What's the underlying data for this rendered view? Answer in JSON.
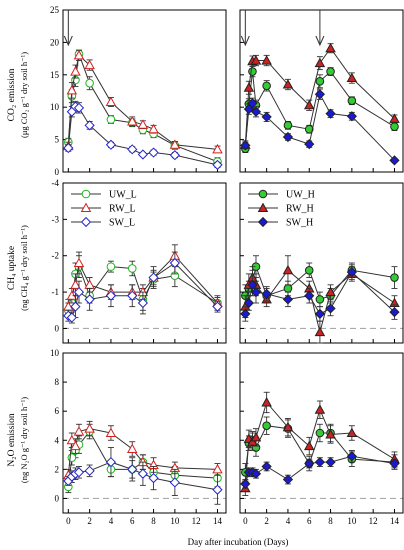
{
  "figure": {
    "xlabel": "Day after incubation (Days)",
    "x_ticks": [
      0,
      2,
      4,
      6,
      8,
      10,
      12,
      14
    ],
    "xlim": [
      -0.5,
      14.8
    ]
  },
  "rows": [
    {
      "ylabel_line1": "CO₂ emission",
      "ylabel_line2": "(μg CO₂ g⁻¹ dry soil h⁻¹)",
      "ylim": [
        0,
        25
      ],
      "y_ticks": [
        0,
        5,
        10,
        15,
        20,
        25
      ],
      "y_tick_labels": [
        "0",
        "5",
        "10",
        "15",
        "20",
        "25"
      ],
      "inverted": false,
      "dashed_zero": false
    },
    {
      "ylabel_line1": "CH₄ uptake",
      "ylabel_line2": "(ng CH₄ g⁻¹ dry soil h⁻¹)",
      "ylim": [
        0.4,
        -4
      ],
      "y_ticks": [
        0,
        -1,
        -2,
        -3,
        -4
      ],
      "y_tick_labels": [
        "0",
        "-1",
        "-2",
        "-3",
        "-4"
      ],
      "inverted": true,
      "dashed_zero": true
    },
    {
      "ylabel_line1": "N₂O emission",
      "ylabel_line2": "(ng N₂O g⁻¹ dry soil h⁻¹)",
      "ylim": [
        -1,
        10
      ],
      "y_ticks": [
        0,
        2,
        4,
        6,
        8,
        10
      ],
      "y_tick_labels": [
        "0",
        "2",
        "4",
        "6",
        "8",
        "10"
      ],
      "inverted": false,
      "dashed_zero": true
    }
  ],
  "legend_left": [
    "UW_L",
    "RW_L",
    "SW_L"
  ],
  "legend_right": [
    "UW_H",
    "RW_H",
    "SW_H"
  ],
  "colors": {
    "UW": "#1fb51f",
    "RW": "#d42020",
    "SW": "#2525c8",
    "open_face": "#ffffff",
    "uw_filled_face": "#33cc33",
    "rw_filled_face": "#cc2222",
    "sw_filled_face": "#1a1ad6",
    "line": "#333333",
    "zero_line": "#aaaaaa"
  },
  "chart_data": [
    {
      "panel": "CO2_L",
      "type": "line",
      "arrows_at_x": [
        0
      ],
      "x": [
        0,
        0.33,
        0.67,
        1,
        2,
        4,
        6,
        7,
        8,
        10,
        14
      ],
      "series": [
        {
          "name": "UW_L",
          "values": [
            4.6,
            11.7,
            14.2,
            18.2,
            13.7,
            8.1,
            7.6,
            6.5,
            5.9,
            4.1,
            1.6
          ],
          "errors": [
            0.6,
            1.0,
            1.0,
            0.6,
            1.0,
            0.6,
            0.6,
            0.6,
            0.6,
            0.6,
            0.6
          ]
        },
        {
          "name": "RW_L",
          "values": [
            4.0,
            12.6,
            15.5,
            18.0,
            16.5,
            10.8,
            7.8,
            7.3,
            6.6,
            4.2,
            3.5
          ],
          "errors": [
            0.6,
            1.2,
            1.0,
            0.8,
            0.8,
            0.7,
            0.7,
            0.6,
            0.6,
            0.5,
            0.5
          ]
        },
        {
          "name": "SW_L",
          "values": [
            3.7,
            9.3,
            10.1,
            9.9,
            7.2,
            4.2,
            3.5,
            2.7,
            3.0,
            2.6,
            1.1
          ],
          "errors": [
            0.5,
            0.8,
            0.8,
            0.8,
            0.6,
            0.4,
            0.4,
            0.3,
            0.4,
            0.4,
            0.4
          ]
        }
      ]
    },
    {
      "panel": "CO2_H",
      "type": "line",
      "arrows_at_x": [
        0,
        7
      ],
      "x": [
        0,
        0.33,
        0.67,
        1,
        2,
        4,
        6,
        7,
        8,
        10,
        14
      ],
      "series": [
        {
          "name": "UW_H",
          "values": [
            3.6,
            10.5,
            15.5,
            10.3,
            13.3,
            7.2,
            6.6,
            14.0,
            15.5,
            11.0,
            7.0
          ],
          "errors": [
            0.6,
            0.8,
            0.8,
            0.8,
            0.8,
            0.6,
            0.6,
            1.0,
            0.6,
            0.6,
            0.6
          ]
        },
        {
          "name": "RW_H",
          "values": [
            4.2,
            13.0,
            17.1,
            17.2,
            17.2,
            13.5,
            10.3,
            16.8,
            19.1,
            14.5,
            8.2
          ],
          "errors": [
            0.6,
            1.0,
            0.8,
            0.8,
            0.8,
            0.8,
            0.8,
            1.0,
            0.7,
            0.8,
            0.6
          ]
        },
        {
          "name": "SW_H",
          "values": [
            4.1,
            9.7,
            10.6,
            9.3,
            8.5,
            5.4,
            4.3,
            12.0,
            9.0,
            8.6,
            1.8
          ],
          "errors": [
            0.5,
            0.8,
            0.8,
            0.8,
            0.7,
            0.5,
            0.5,
            0.8,
            0.6,
            0.6,
            0.3
          ]
        }
      ]
    },
    {
      "panel": "CH4_L",
      "type": "line",
      "x": [
        0,
        0.33,
        0.67,
        1,
        2,
        4,
        6,
        7,
        8,
        10,
        14
      ],
      "series": [
        {
          "name": "UW_L",
          "values": [
            -0.5,
            -0.7,
            -1.5,
            -1.7,
            -0.9,
            -1.7,
            -1.65,
            -0.8,
            -1.35,
            -1.45,
            -0.7
          ],
          "errors": [
            0.2,
            0.2,
            0.3,
            0.3,
            0.2,
            0.15,
            0.2,
            0.3,
            0.2,
            0.3,
            0.15
          ]
        },
        {
          "name": "RW_L",
          "values": [
            -0.6,
            -0.9,
            -1.2,
            -1.8,
            -1.2,
            -1.0,
            -1.0,
            -1.0,
            -1.4,
            -2.0,
            -0.7
          ],
          "errors": [
            0.2,
            0.2,
            0.3,
            0.3,
            0.2,
            0.2,
            0.2,
            0.2,
            0.2,
            0.3,
            0.2
          ]
        },
        {
          "name": "SW_L",
          "values": [
            -0.35,
            -0.3,
            -0.6,
            -1.0,
            -0.8,
            -0.9,
            -0.9,
            -0.7,
            -1.4,
            -1.8,
            -0.6
          ],
          "errors": [
            0.15,
            0.15,
            0.3,
            0.3,
            0.3,
            0.3,
            0.3,
            0.3,
            0.3,
            0.3,
            0.15
          ]
        }
      ]
    },
    {
      "panel": "CH4_H",
      "type": "line",
      "x": [
        0,
        0.33,
        0.67,
        1,
        2,
        4,
        6,
        7,
        8,
        10,
        14
      ],
      "series": [
        {
          "name": "UW_H",
          "values": [
            -0.9,
            -1.1,
            -1.3,
            -1.7,
            -0.9,
            -1.1,
            -1.6,
            -0.8,
            -0.9,
            -1.6,
            -1.4
          ],
          "errors": [
            0.3,
            0.2,
            0.3,
            0.3,
            0.2,
            0.2,
            0.2,
            0.2,
            0.2,
            0.2,
            0.3
          ]
        },
        {
          "name": "RW_H",
          "values": [
            -0.6,
            -1.2,
            -1.4,
            -1.2,
            -0.8,
            -1.6,
            -1.1,
            0.1,
            -1.0,
            -1.5,
            -0.7
          ],
          "errors": [
            0.3,
            0.3,
            0.3,
            0.3,
            0.2,
            0.4,
            0.2,
            0.3,
            0.2,
            0.2,
            0.2
          ]
        },
        {
          "name": "SW_H",
          "values": [
            -0.4,
            -0.7,
            -1.2,
            -1.0,
            -0.95,
            -0.8,
            -0.9,
            -0.4,
            -0.55,
            -1.55,
            -0.45
          ],
          "errors": [
            0.2,
            0.2,
            0.3,
            0.3,
            0.2,
            0.2,
            0.2,
            0.2,
            0.2,
            0.2,
            0.2
          ]
        }
      ]
    },
    {
      "panel": "N2O_L",
      "type": "line",
      "x": [
        0,
        0.33,
        0.67,
        1,
        2,
        4,
        6,
        7,
        8,
        10,
        14
      ],
      "series": [
        {
          "name": "UW_L",
          "values": [
            0.8,
            2.8,
            3.3,
            3.7,
            4.6,
            2.0,
            2.0,
            2.5,
            1.8,
            1.6,
            1.4
          ],
          "errors": [
            0.4,
            0.5,
            0.5,
            0.6,
            0.5,
            0.5,
            0.6,
            0.5,
            0.5,
            0.6,
            0.6
          ]
        },
        {
          "name": "RW_L",
          "values": [
            1.6,
            4.0,
            3.6,
            4.6,
            4.8,
            4.5,
            3.4,
            2.5,
            2.3,
            2.1,
            2.0
          ],
          "errors": [
            0.4,
            0.5,
            0.5,
            0.5,
            0.5,
            0.5,
            0.5,
            0.5,
            0.5,
            0.4,
            0.4
          ]
        },
        {
          "name": "SW_L",
          "values": [
            1.2,
            1.5,
            1.7,
            1.8,
            1.9,
            2.5,
            2.0,
            1.7,
            1.4,
            1.1,
            0.6
          ],
          "errors": [
            0.3,
            0.4,
            0.4,
            0.4,
            0.4,
            1.0,
            0.8,
            0.8,
            0.8,
            0.9,
            1.0
          ]
        }
      ]
    },
    {
      "panel": "N2O_H",
      "type": "line",
      "x": [
        0,
        0.33,
        0.67,
        1,
        2,
        4,
        6,
        7,
        8,
        10,
        14
      ],
      "series": [
        {
          "name": "UW_H",
          "values": [
            1.8,
            3.8,
            4.0,
            3.5,
            5.0,
            4.8,
            2.4,
            4.5,
            4.5,
            2.7,
            2.5
          ],
          "errors": [
            0.6,
            0.5,
            0.6,
            0.6,
            0.6,
            0.6,
            0.5,
            0.6,
            0.6,
            0.5,
            0.5
          ]
        },
        {
          "name": "RW_H",
          "values": [
            0.7,
            4.1,
            3.9,
            4.2,
            6.6,
            4.9,
            3.6,
            6.1,
            4.4,
            4.5,
            2.7
          ],
          "errors": [
            0.5,
            0.6,
            0.6,
            0.6,
            0.7,
            0.6,
            0.6,
            0.6,
            0.6,
            0.5,
            0.5
          ]
        },
        {
          "name": "SW_H",
          "values": [
            1.0,
            1.8,
            1.8,
            1.7,
            2.2,
            1.3,
            2.4,
            2.5,
            2.5,
            2.9,
            2.4
          ],
          "errors": [
            0.3,
            0.3,
            0.3,
            0.3,
            0.3,
            0.3,
            0.3,
            0.3,
            0.3,
            0.4,
            0.3
          ]
        }
      ]
    }
  ]
}
